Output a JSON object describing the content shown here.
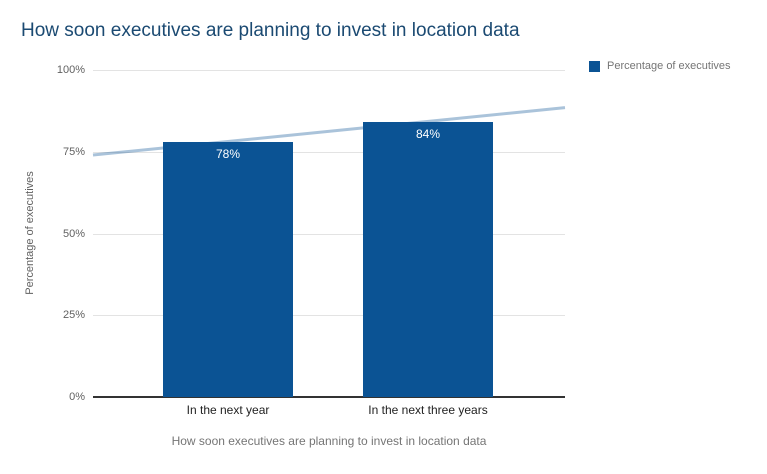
{
  "title": "How soon executives are planning to invest in location data",
  "legend": {
    "label": "Percentage of executives",
    "swatch_color": "#0b5394",
    "position": "top-right"
  },
  "colors": {
    "title": "#1b4a72",
    "bar": "#0b5394",
    "trendline": "rgba(11,83,148,0.35)",
    "gridline": "#e3e3e3",
    "axis_line": "#333333",
    "tick_label": "#616161",
    "category_label": "#222222",
    "axis_title": "#757575",
    "value_label": "#ffffff"
  },
  "chart_data": {
    "type": "bar",
    "title": "How soon executives are planning to invest in location data",
    "categories": [
      "In the next year",
      "In the next three years"
    ],
    "series": [
      {
        "name": "Percentage of executives",
        "values": [
          78,
          84
        ]
      }
    ],
    "value_labels": [
      "78%",
      "84%"
    ],
    "xlabel": "How soon executives are planning to invest in location data",
    "ylabel": "Percentage of executives",
    "ylim": [
      0,
      100
    ],
    "yticks": [
      {
        "value": 100,
        "label": "100%"
      },
      {
        "value": 75,
        "label": "75%"
      },
      {
        "value": 50,
        "label": "50%"
      },
      {
        "value": 25,
        "label": "25%"
      },
      {
        "value": 0,
        "label": "0%"
      }
    ],
    "grid": true,
    "legend_position": "top-right",
    "trendline": {
      "shape": "linear",
      "start_value": 74,
      "end_value": 88.5
    }
  }
}
